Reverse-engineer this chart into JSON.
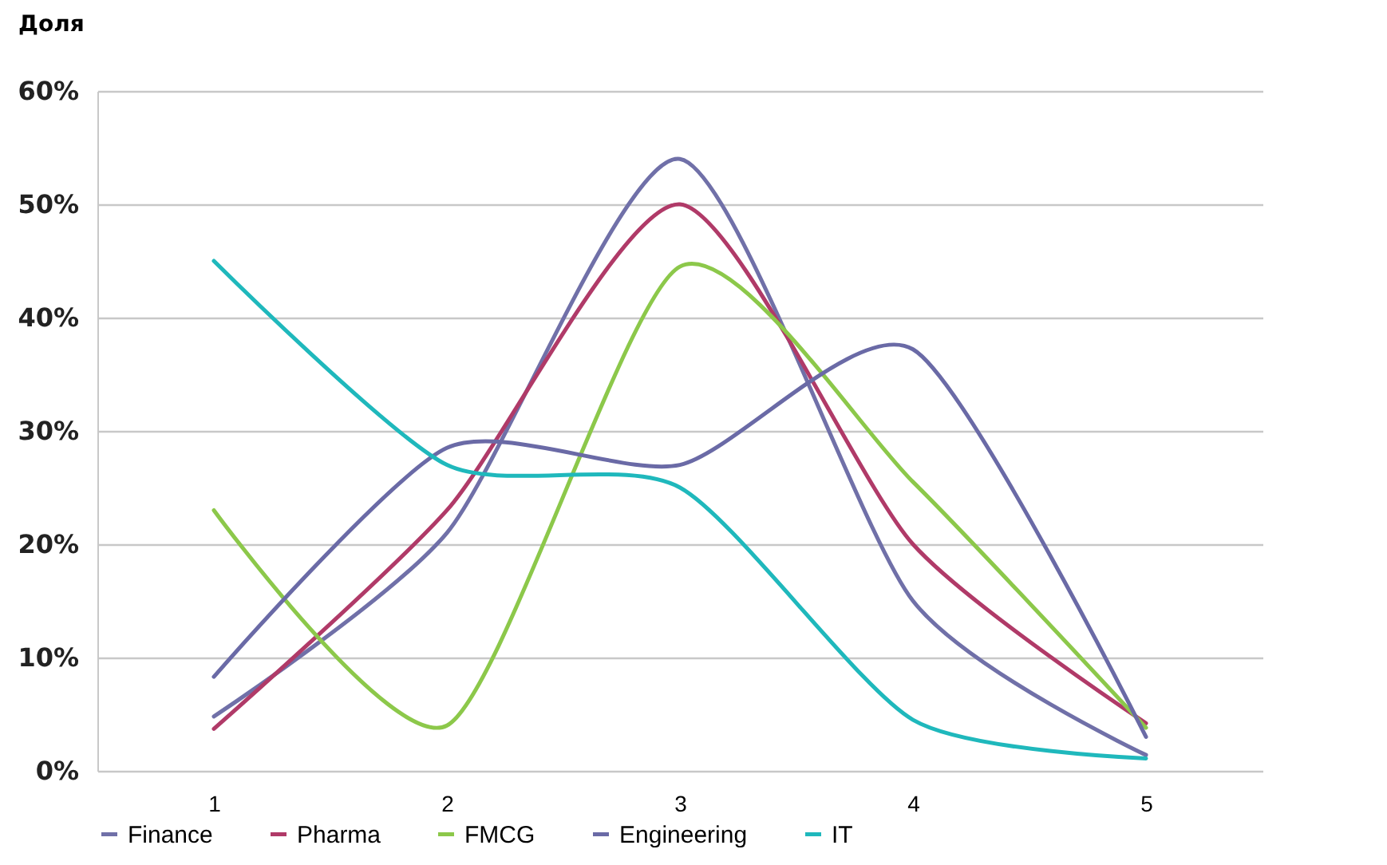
{
  "chart_data": {
    "type": "line",
    "ylabel": "Доля",
    "categories": [
      "1",
      "2",
      "3",
      "4",
      "5"
    ],
    "series": [
      {
        "name": "Finance",
        "color": "#7070a8",
        "values": [
          0.048,
          0.21,
          0.54,
          0.15,
          0.014
        ]
      },
      {
        "name": "Pharma",
        "color": "#b03a68",
        "values": [
          0.037,
          0.23,
          0.5,
          0.2,
          0.042
        ]
      },
      {
        "name": "FMCG",
        "color": "#8cc84a",
        "values": [
          0.23,
          0.04,
          0.445,
          0.255,
          0.038
        ]
      },
      {
        "name": "Engineering",
        "color": "#6a6aa6",
        "values": [
          0.083,
          0.285,
          0.27,
          0.372,
          0.03
        ]
      },
      {
        "name": "IT",
        "color": "#1fb8bc",
        "values": [
          0.45,
          0.27,
          0.25,
          0.045,
          0.011
        ]
      }
    ],
    "ylim": [
      0,
      0.6
    ],
    "yticks": [
      {
        "value": 0,
        "label": "0%"
      },
      {
        "value": 0.1,
        "label": "10%"
      },
      {
        "value": 0.2,
        "label": "20%"
      },
      {
        "value": 0.3,
        "label": "30%"
      },
      {
        "value": 0.4,
        "label": "40%"
      },
      {
        "value": 0.5,
        "label": "50%"
      },
      {
        "value": 0.6,
        "label": "60%"
      }
    ],
    "grid": "y",
    "legend": "bottom",
    "marker": "none",
    "line_style": "solid"
  }
}
